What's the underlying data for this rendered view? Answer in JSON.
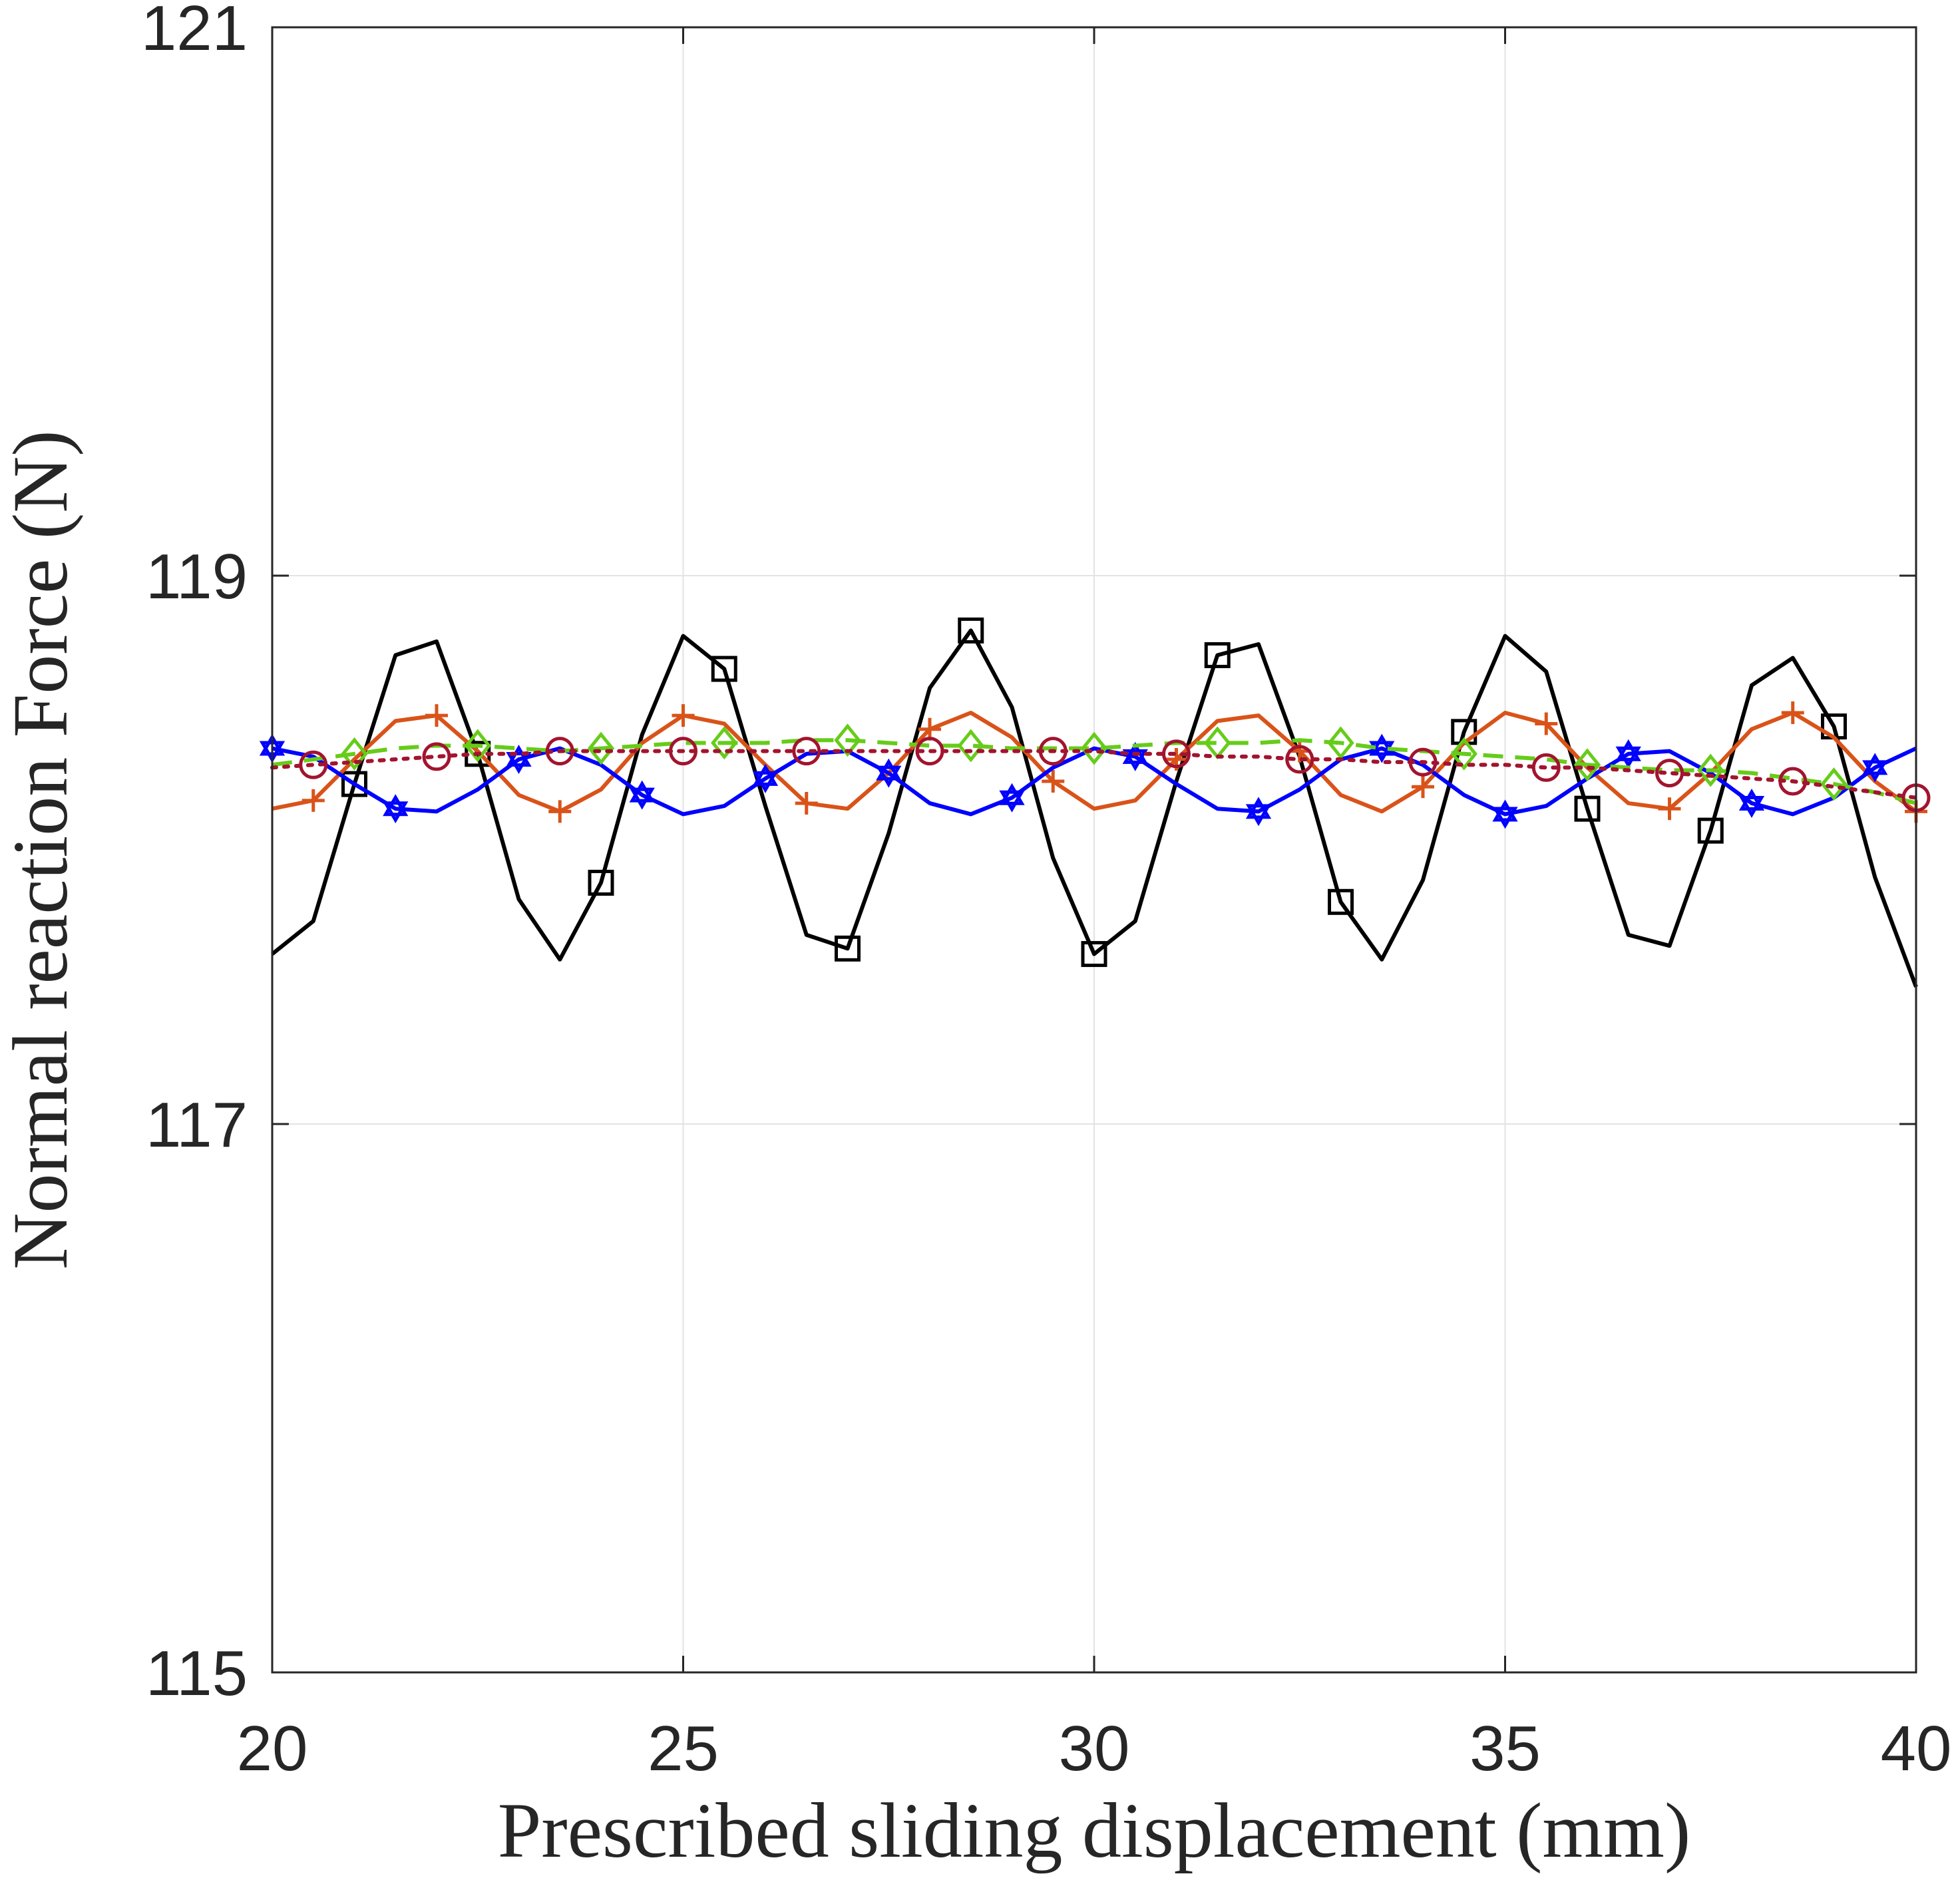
{
  "chart_data": {
    "type": "line",
    "x_label": "Prescribed sliding displacement (mm)",
    "y_label": "Normal reaction Force (N)",
    "xlim": [
      20,
      40
    ],
    "xticks": [
      20,
      25,
      30,
      35,
      40
    ],
    "ylim": [
      115,
      121
    ],
    "yticks": [
      115,
      117,
      119,
      121
    ],
    "grid": true,
    "x": [
      20,
      20.5,
      21,
      21.5,
      22,
      22.5,
      23,
      23.5,
      24,
      24.5,
      25,
      25.5,
      26,
      26.5,
      27,
      27.5,
      28,
      28.5,
      29,
      29.5,
      30,
      30.5,
      31,
      31.5,
      32,
      32.5,
      33,
      33.5,
      34,
      34.5,
      35,
      35.5,
      36,
      36.5,
      37,
      37.5,
      38,
      38.5,
      39,
      39.5,
      40
    ],
    "series": [
      {
        "color": "#000000",
        "line_style": "solid",
        "marker": "square",
        "values": [
          117.62,
          117.74,
          118.24,
          118.71,
          118.76,
          118.35,
          117.82,
          117.6,
          117.88,
          118.42,
          118.78,
          118.66,
          118.16,
          117.69,
          117.64,
          118.06,
          118.59,
          118.8,
          118.52,
          117.97,
          117.62,
          117.74,
          118.25,
          118.71,
          118.75,
          118.34,
          117.81,
          117.6,
          117.89,
          118.43,
          118.78,
          118.65,
          118.15,
          117.69,
          117.65,
          118.07,
          118.6,
          118.7,
          118.45,
          117.9,
          117.5
        ]
      },
      {
        "color": "#d95319",
        "line_style": "solid",
        "marker": "plus",
        "values": [
          118.15,
          118.18,
          118.33,
          118.47,
          118.49,
          118.36,
          118.2,
          118.14,
          118.22,
          118.39,
          118.49,
          118.46,
          118.31,
          118.17,
          118.15,
          118.28,
          118.44,
          118.5,
          118.41,
          118.25,
          118.15,
          118.18,
          118.33,
          118.47,
          118.49,
          118.36,
          118.2,
          118.14,
          118.23,
          118.39,
          118.5,
          118.46,
          118.3,
          118.17,
          118.15,
          118.28,
          118.44,
          118.5,
          118.41,
          118.25,
          118.14
        ]
      },
      {
        "color": "#0000ff",
        "line_style": "solid",
        "marker": "hexagram",
        "values": [
          118.37,
          118.34,
          118.24,
          118.15,
          118.14,
          118.22,
          118.33,
          118.37,
          118.31,
          118.2,
          118.13,
          118.16,
          118.26,
          118.35,
          118.36,
          118.28,
          118.17,
          118.13,
          118.19,
          118.3,
          118.37,
          118.34,
          118.24,
          118.15,
          118.14,
          118.22,
          118.33,
          118.37,
          118.31,
          118.2,
          118.13,
          118.16,
          118.26,
          118.35,
          118.36,
          118.28,
          118.17,
          118.13,
          118.19,
          118.3,
          118.37
        ]
      },
      {
        "color": "#66cc1a",
        "line_style": "dashed",
        "marker": "diamond",
        "values": [
          118.31,
          118.33,
          118.35,
          118.37,
          118.38,
          118.38,
          118.37,
          118.36,
          118.37,
          118.38,
          118.39,
          118.39,
          118.39,
          118.4,
          118.4,
          118.39,
          118.38,
          118.38,
          118.37,
          118.37,
          118.37,
          118.38,
          118.39,
          118.39,
          118.39,
          118.4,
          118.39,
          118.37,
          118.36,
          118.35,
          118.34,
          118.33,
          118.31,
          118.3,
          118.29,
          118.29,
          118.28,
          118.26,
          118.24,
          118.21,
          118.17
        ]
      },
      {
        "color": "#a2142f",
        "line_style": "dotted",
        "marker": "circle",
        "values": [
          118.3,
          118.31,
          118.32,
          118.33,
          118.34,
          118.35,
          118.35,
          118.36,
          118.36,
          118.36,
          118.36,
          118.36,
          118.36,
          118.36,
          118.36,
          118.36,
          118.36,
          118.36,
          118.36,
          118.36,
          118.36,
          118.35,
          118.35,
          118.34,
          118.34,
          118.33,
          118.33,
          118.32,
          118.32,
          118.31,
          118.31,
          118.3,
          118.3,
          118.29,
          118.28,
          118.27,
          118.26,
          118.25,
          118.23,
          118.21,
          118.19
        ]
      }
    ]
  }
}
